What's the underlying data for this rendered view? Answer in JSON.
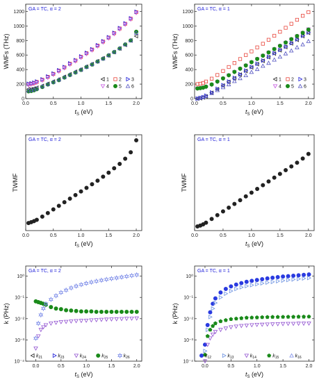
{
  "colors": {
    "black": "#222222",
    "red": "#e8443a",
    "blue": "#1a1ad8",
    "magenta": "#c455e0",
    "green": "#1a8a1a",
    "navy": "#5050c0",
    "royal": "#2a3be0",
    "periwinkle": "#7a8ae8",
    "violet": "#9050d0",
    "lightblue": "#6a90e0"
  },
  "chart_data": [
    {
      "type": "scatter",
      "annotation": "GA = TC, α = 2",
      "xlabel_main": "t",
      "xlabel_sub": "S",
      "xlabel_unit": " (eV)",
      "ylabel": "WMFs (THz)",
      "xlim": [
        0,
        2.1
      ],
      "ylim": [
        0,
        1300
      ],
      "yscale": "linear",
      "xticks": [
        0.0,
        0.5,
        1.0,
        1.5,
        2.0
      ],
      "xtick_labels": [
        "0.0",
        "0.5",
        "1.0",
        "1.5",
        "2.0"
      ],
      "yticks": [
        0,
        200,
        400,
        600,
        800,
        1000,
        1200
      ],
      "ytick_labels": [
        "0",
        "200",
        "400",
        "600",
        "800",
        "1000",
        "1200"
      ],
      "legend_cols": 3,
      "legend_position": "bottom-right",
      "x": [
        0.05,
        0.1,
        0.15,
        0.2,
        0.3,
        0.4,
        0.5,
        0.6,
        0.7,
        0.8,
        0.9,
        1.0,
        1.1,
        1.2,
        1.3,
        1.4,
        1.5,
        1.6,
        1.7,
        1.8,
        1.9,
        2.0
      ],
      "series": [
        {
          "name": "1",
          "marker": "tri-left",
          "color": "black",
          "fill": false,
          "values": [
            130,
            130,
            140,
            150,
            175,
            205,
            235,
            265,
            300,
            335,
            370,
            400,
            440,
            475,
            515,
            555,
            595,
            640,
            690,
            740,
            800,
            860
          ]
        },
        {
          "name": "2",
          "marker": "square",
          "color": "red",
          "fill": false,
          "values": [
            200,
            205,
            215,
            230,
            260,
            300,
            340,
            385,
            430,
            480,
            525,
            575,
            625,
            675,
            730,
            785,
            840,
            900,
            965,
            1030,
            1100,
            1190
          ]
        },
        {
          "name": "3",
          "marker": "tri-right",
          "color": "blue",
          "fill": false,
          "values": [
            205,
            210,
            220,
            235,
            265,
            305,
            345,
            390,
            435,
            485,
            530,
            580,
            630,
            680,
            735,
            790,
            845,
            905,
            970,
            1035,
            1105,
            1195
          ]
        },
        {
          "name": "4",
          "marker": "tri-down",
          "color": "magenta",
          "fill": false,
          "values": [
            185,
            195,
            205,
            220,
            250,
            290,
            330,
            375,
            420,
            470,
            515,
            565,
            615,
            665,
            720,
            775,
            830,
            890,
            955,
            1020,
            1090,
            1180
          ]
        },
        {
          "name": "5",
          "marker": "circle",
          "color": "green",
          "fill": true,
          "values": [
            100,
            105,
            115,
            130,
            160,
            195,
            225,
            255,
            290,
            325,
            360,
            395,
            435,
            470,
            510,
            550,
            595,
            640,
            690,
            745,
            800,
            920
          ]
        },
        {
          "name": "6",
          "marker": "tri-up",
          "color": "navy",
          "fill": false,
          "values": [
            110,
            115,
            125,
            140,
            170,
            200,
            230,
            262,
            296,
            330,
            366,
            400,
            438,
            474,
            512,
            552,
            596,
            642,
            692,
            745,
            800,
            905
          ]
        }
      ]
    },
    {
      "type": "scatter",
      "annotation": "GA = TC, α = 1",
      "xlabel_main": "t",
      "xlabel_sub": "S",
      "xlabel_unit": " (eV)",
      "ylabel": "WMFs (THz)",
      "xlim": [
        0,
        2.1
      ],
      "ylim": [
        0,
        1300
      ],
      "yscale": "linear",
      "xticks": [
        0.0,
        0.5,
        1.0,
        1.5,
        2.0
      ],
      "xtick_labels": [
        "0.0",
        "0.5",
        "1.0",
        "1.5",
        "2.0"
      ],
      "yticks": [
        0,
        200,
        400,
        600,
        800,
        1000,
        1200
      ],
      "ytick_labels": [
        "0",
        "200",
        "400",
        "600",
        "800",
        "1000",
        "1200"
      ],
      "legend_cols": 3,
      "legend_position": "bottom-right",
      "x": [
        0.05,
        0.1,
        0.15,
        0.2,
        0.3,
        0.4,
        0.5,
        0.6,
        0.7,
        0.8,
        0.9,
        1.0,
        1.1,
        1.2,
        1.3,
        1.4,
        1.5,
        1.6,
        1.7,
        1.8,
        1.9,
        2.0
      ],
      "series": [
        {
          "name": "1",
          "marker": "tri-left",
          "color": "black",
          "fill": false,
          "values": [
            0,
            5,
            15,
            30,
            80,
            130,
            180,
            230,
            280,
            330,
            380,
            430,
            475,
            520,
            570,
            620,
            665,
            710,
            760,
            810,
            860,
            905
          ]
        },
        {
          "name": "2",
          "marker": "square",
          "color": "red",
          "fill": false,
          "values": [
            200,
            205,
            215,
            235,
            275,
            325,
            380,
            435,
            490,
            545,
            600,
            650,
            705,
            755,
            810,
            865,
            920,
            975,
            1030,
            1085,
            1140,
            1190
          ]
        },
        {
          "name": "3",
          "marker": "tri-right",
          "color": "blue",
          "fill": false,
          "values": [
            0,
            10,
            20,
            40,
            85,
            135,
            185,
            235,
            285,
            335,
            385,
            435,
            480,
            525,
            575,
            625,
            670,
            715,
            765,
            815,
            865,
            910
          ]
        },
        {
          "name": "4",
          "marker": "tri-down",
          "color": "magenta",
          "fill": false,
          "values": [
            140,
            145,
            150,
            160,
            190,
            230,
            275,
            320,
            365,
            410,
            455,
            500,
            545,
            590,
            635,
            680,
            725,
            770,
            815,
            860,
            905,
            955
          ]
        },
        {
          "name": "5",
          "marker": "circle",
          "color": "green",
          "fill": true,
          "values": [
            140,
            145,
            152,
            165,
            195,
            235,
            278,
            322,
            368,
            412,
            456,
            502,
            546,
            592,
            636,
            682,
            726,
            772,
            818,
            862,
            906,
            950
          ]
        },
        {
          "name": "6",
          "marker": "tri-up",
          "color": "navy",
          "fill": false,
          "values": [
            0,
            10,
            20,
            35,
            75,
            115,
            155,
            195,
            240,
            280,
            320,
            365,
            405,
            450,
            490,
            535,
            575,
            620,
            660,
            705,
            745,
            790
          ]
        }
      ]
    },
    {
      "type": "scatter",
      "annotation": "GA = TC, α = 2",
      "xlabel_main": "t",
      "xlabel_sub": "S",
      "xlabel_unit": " (eV)",
      "ylabel": "TWMF",
      "xlim": [
        0,
        2.1
      ],
      "ylim": [
        0,
        1200
      ],
      "yscale": "linear",
      "xticks": [
        0.0,
        0.5,
        1.0,
        1.5,
        2.0
      ],
      "xtick_labels": [
        "0.0",
        "0.5",
        "1.0",
        "1.5",
        "2.0"
      ],
      "yticks": [],
      "ytick_labels": [],
      "x": [
        0.05,
        0.1,
        0.15,
        0.2,
        0.3,
        0.4,
        0.5,
        0.6,
        0.7,
        0.8,
        0.9,
        1.0,
        1.1,
        1.2,
        1.3,
        1.4,
        1.5,
        1.6,
        1.7,
        1.8,
        1.9,
        2.0
      ],
      "series": [
        {
          "marker": "circle",
          "color": "black",
          "fill": true,
          "values": [
            95,
            105,
            118,
            135,
            175,
            220,
            265,
            310,
            355,
            400,
            445,
            490,
            535,
            580,
            625,
            675,
            725,
            780,
            835,
            900,
            980,
            1130
          ]
        }
      ]
    },
    {
      "type": "scatter",
      "annotation": "GA = TC, α = 1",
      "xlabel_main": "t",
      "xlabel_sub": "S",
      "xlabel_unit": " (eV)",
      "ylabel": "TWMF",
      "xlim": [
        0,
        2.1
      ],
      "ylim": [
        -50,
        1100
      ],
      "yscale": "linear",
      "xticks": [
        0.0,
        0.5,
        1.0,
        1.5,
        2.0
      ],
      "xtick_labels": [
        "0.0",
        "0.5",
        "1.0",
        "1.5",
        "2.0"
      ],
      "yticks": [],
      "ytick_labels": [],
      "x": [
        0.05,
        0.1,
        0.15,
        0.2,
        0.3,
        0.4,
        0.5,
        0.6,
        0.7,
        0.8,
        0.9,
        1.0,
        1.1,
        1.2,
        1.3,
        1.4,
        1.5,
        1.6,
        1.7,
        1.8,
        1.9,
        2.0
      ],
      "series": [
        {
          "marker": "circle",
          "color": "black",
          "fill": true,
          "values": [
            0,
            10,
            25,
            45,
            90,
            135,
            180,
            225,
            270,
            315,
            360,
            405,
            450,
            495,
            540,
            585,
            630,
            675,
            720,
            765,
            815,
            870
          ]
        }
      ]
    },
    {
      "type": "scatter",
      "annotation": "GA = TC, α = 2",
      "xlabel_main": "t",
      "xlabel_sub": "S",
      "xlabel_unit": " (eV)",
      "ylabel": "k (PHz)",
      "xlim": [
        -0.2,
        2.1
      ],
      "ylim": [
        0.0001,
        3
      ],
      "yscale": "log",
      "xticks": [
        0.0,
        0.5,
        1.0,
        1.5,
        2.0
      ],
      "xtick_labels": [
        "0.0",
        "0.5",
        "1.0",
        "1.5",
        "2.0"
      ],
      "yticks": [
        0.0001,
        0.001,
        0.01,
        0.1,
        1
      ],
      "ytick_labels": [
        "10⁻⁴",
        "10⁻³",
        "10⁻²",
        "10⁻¹",
        "10⁰"
      ],
      "legend_cols": 5,
      "legend_position": "bottom",
      "x": [
        0.0,
        0.05,
        0.1,
        0.15,
        0.2,
        0.3,
        0.4,
        0.5,
        0.6,
        0.7,
        0.8,
        0.9,
        1.0,
        1.1,
        1.2,
        1.3,
        1.4,
        1.5,
        1.6,
        1.7,
        1.8,
        1.9,
        2.0
      ],
      "series": [
        {
          "name": "21",
          "marker": "tri-left",
          "color": "black",
          "fill": false,
          "values": []
        },
        {
          "name": "23",
          "marker": "tri-right",
          "color": "blue",
          "fill": false,
          "values": []
        },
        {
          "name": "24",
          "marker": "tri-down",
          "color": "violet",
          "fill": false,
          "values": [
            0.0004,
            0.0015,
            0.003,
            0.004,
            0.005,
            0.006,
            0.0065,
            0.007,
            0.0072,
            0.0075,
            0.0078,
            0.008,
            0.0082,
            0.0085,
            0.0087,
            0.009,
            0.0092,
            0.0094,
            0.0096,
            0.0098,
            0.01,
            0.0102,
            0.0104
          ]
        },
        {
          "name": "25",
          "marker": "circle",
          "color": "green",
          "fill": true,
          "values": [
            0.065,
            0.06,
            0.055,
            0.05,
            0.045,
            0.035,
            0.03,
            0.028,
            0.025,
            0.024,
            0.023,
            0.022,
            0.022,
            0.022,
            0.021,
            0.021,
            0.021,
            0.021,
            0.021,
            0.021,
            0.021,
            0.021,
            0.021
          ]
        },
        {
          "name": "26",
          "marker": "star",
          "color": "periwinkle",
          "fill": false,
          "values": [
            0.0012,
            0.006,
            0.015,
            0.03,
            0.05,
            0.08,
            0.12,
            0.17,
            0.22,
            0.28,
            0.34,
            0.4,
            0.46,
            0.52,
            0.58,
            0.64,
            0.7,
            0.76,
            0.82,
            0.9,
            0.98,
            1.06,
            1.15
          ]
        }
      ]
    },
    {
      "type": "scatter",
      "annotation": "GA = TC, α = 1",
      "xlabel_main": "t",
      "xlabel_sub": "S",
      "xlabel_unit": " (eV)",
      "ylabel": "k (PHz)",
      "xlim": [
        -0.2,
        2.1
      ],
      "ylim": [
        0.0001,
        3
      ],
      "yscale": "log",
      "xticks": [
        0.0,
        0.5,
        1.0,
        1.5,
        2.0
      ],
      "xtick_labels": [
        "0.0",
        "0.5",
        "1.0",
        "1.5",
        "2.0"
      ],
      "yticks": [
        0.0001,
        0.001,
        0.01,
        0.1,
        1
      ],
      "ytick_labels": [
        "10⁻⁴",
        "10⁻³",
        "10⁻²",
        "10⁻¹",
        "10⁰"
      ],
      "legend_cols": 5,
      "legend_position": "bottom",
      "x": [
        0.0,
        0.05,
        0.1,
        0.15,
        0.2,
        0.3,
        0.4,
        0.5,
        0.6,
        0.7,
        0.8,
        0.9,
        1.0,
        1.1,
        1.2,
        1.3,
        1.4,
        1.5,
        1.6,
        1.7,
        1.8,
        1.9,
        2.0
      ],
      "series": [
        {
          "name": "12",
          "marker": "circle",
          "color": "royal",
          "fill": true,
          "values": [
            0.0006,
            0.005,
            0.02,
            0.05,
            0.09,
            0.17,
            0.25,
            0.33,
            0.4,
            0.47,
            0.54,
            0.6,
            0.66,
            0.72,
            0.78,
            0.84,
            0.9,
            0.96,
            1.0,
            1.05,
            1.1,
            1.15,
            1.2
          ]
        },
        {
          "name": "13",
          "marker": "tri-right",
          "color": "lightblue",
          "fill": false,
          "values": [
            0.0003,
            0.003,
            0.012,
            0.03,
            0.055,
            0.1,
            0.15,
            0.2,
            0.25,
            0.3,
            0.34,
            0.38,
            0.42,
            0.46,
            0.5,
            0.54,
            0.58,
            0.62,
            0.66,
            0.7,
            0.74,
            0.78,
            0.82
          ]
        },
        {
          "name": "14",
          "marker": "tri-down",
          "color": "violet",
          "fill": false,
          "values": [
            0.0001,
            0.0006,
            0.0012,
            0.0018,
            0.0024,
            0.003,
            0.0035,
            0.004,
            0.0043,
            0.0046,
            0.0048,
            0.005,
            0.0052,
            0.0053,
            0.0054,
            0.0055,
            0.0056,
            0.0057,
            0.0058,
            0.0058,
            0.0059,
            0.0059,
            0.006
          ]
        },
        {
          "name": "15",
          "marker": "pentagon",
          "color": "green",
          "fill": true,
          "values": [
            0.0002,
            0.0015,
            0.003,
            0.0045,
            0.006,
            0.0075,
            0.0085,
            0.0095,
            0.01,
            0.0105,
            0.011,
            0.0112,
            0.0114,
            0.0116,
            0.0118,
            0.012,
            0.012,
            0.0121,
            0.0122,
            0.0122,
            0.0123,
            0.0123,
            0.0124
          ]
        },
        {
          "name": "16",
          "marker": "tri-up",
          "color": "periwinkle",
          "fill": false,
          "values": []
        }
      ]
    }
  ]
}
